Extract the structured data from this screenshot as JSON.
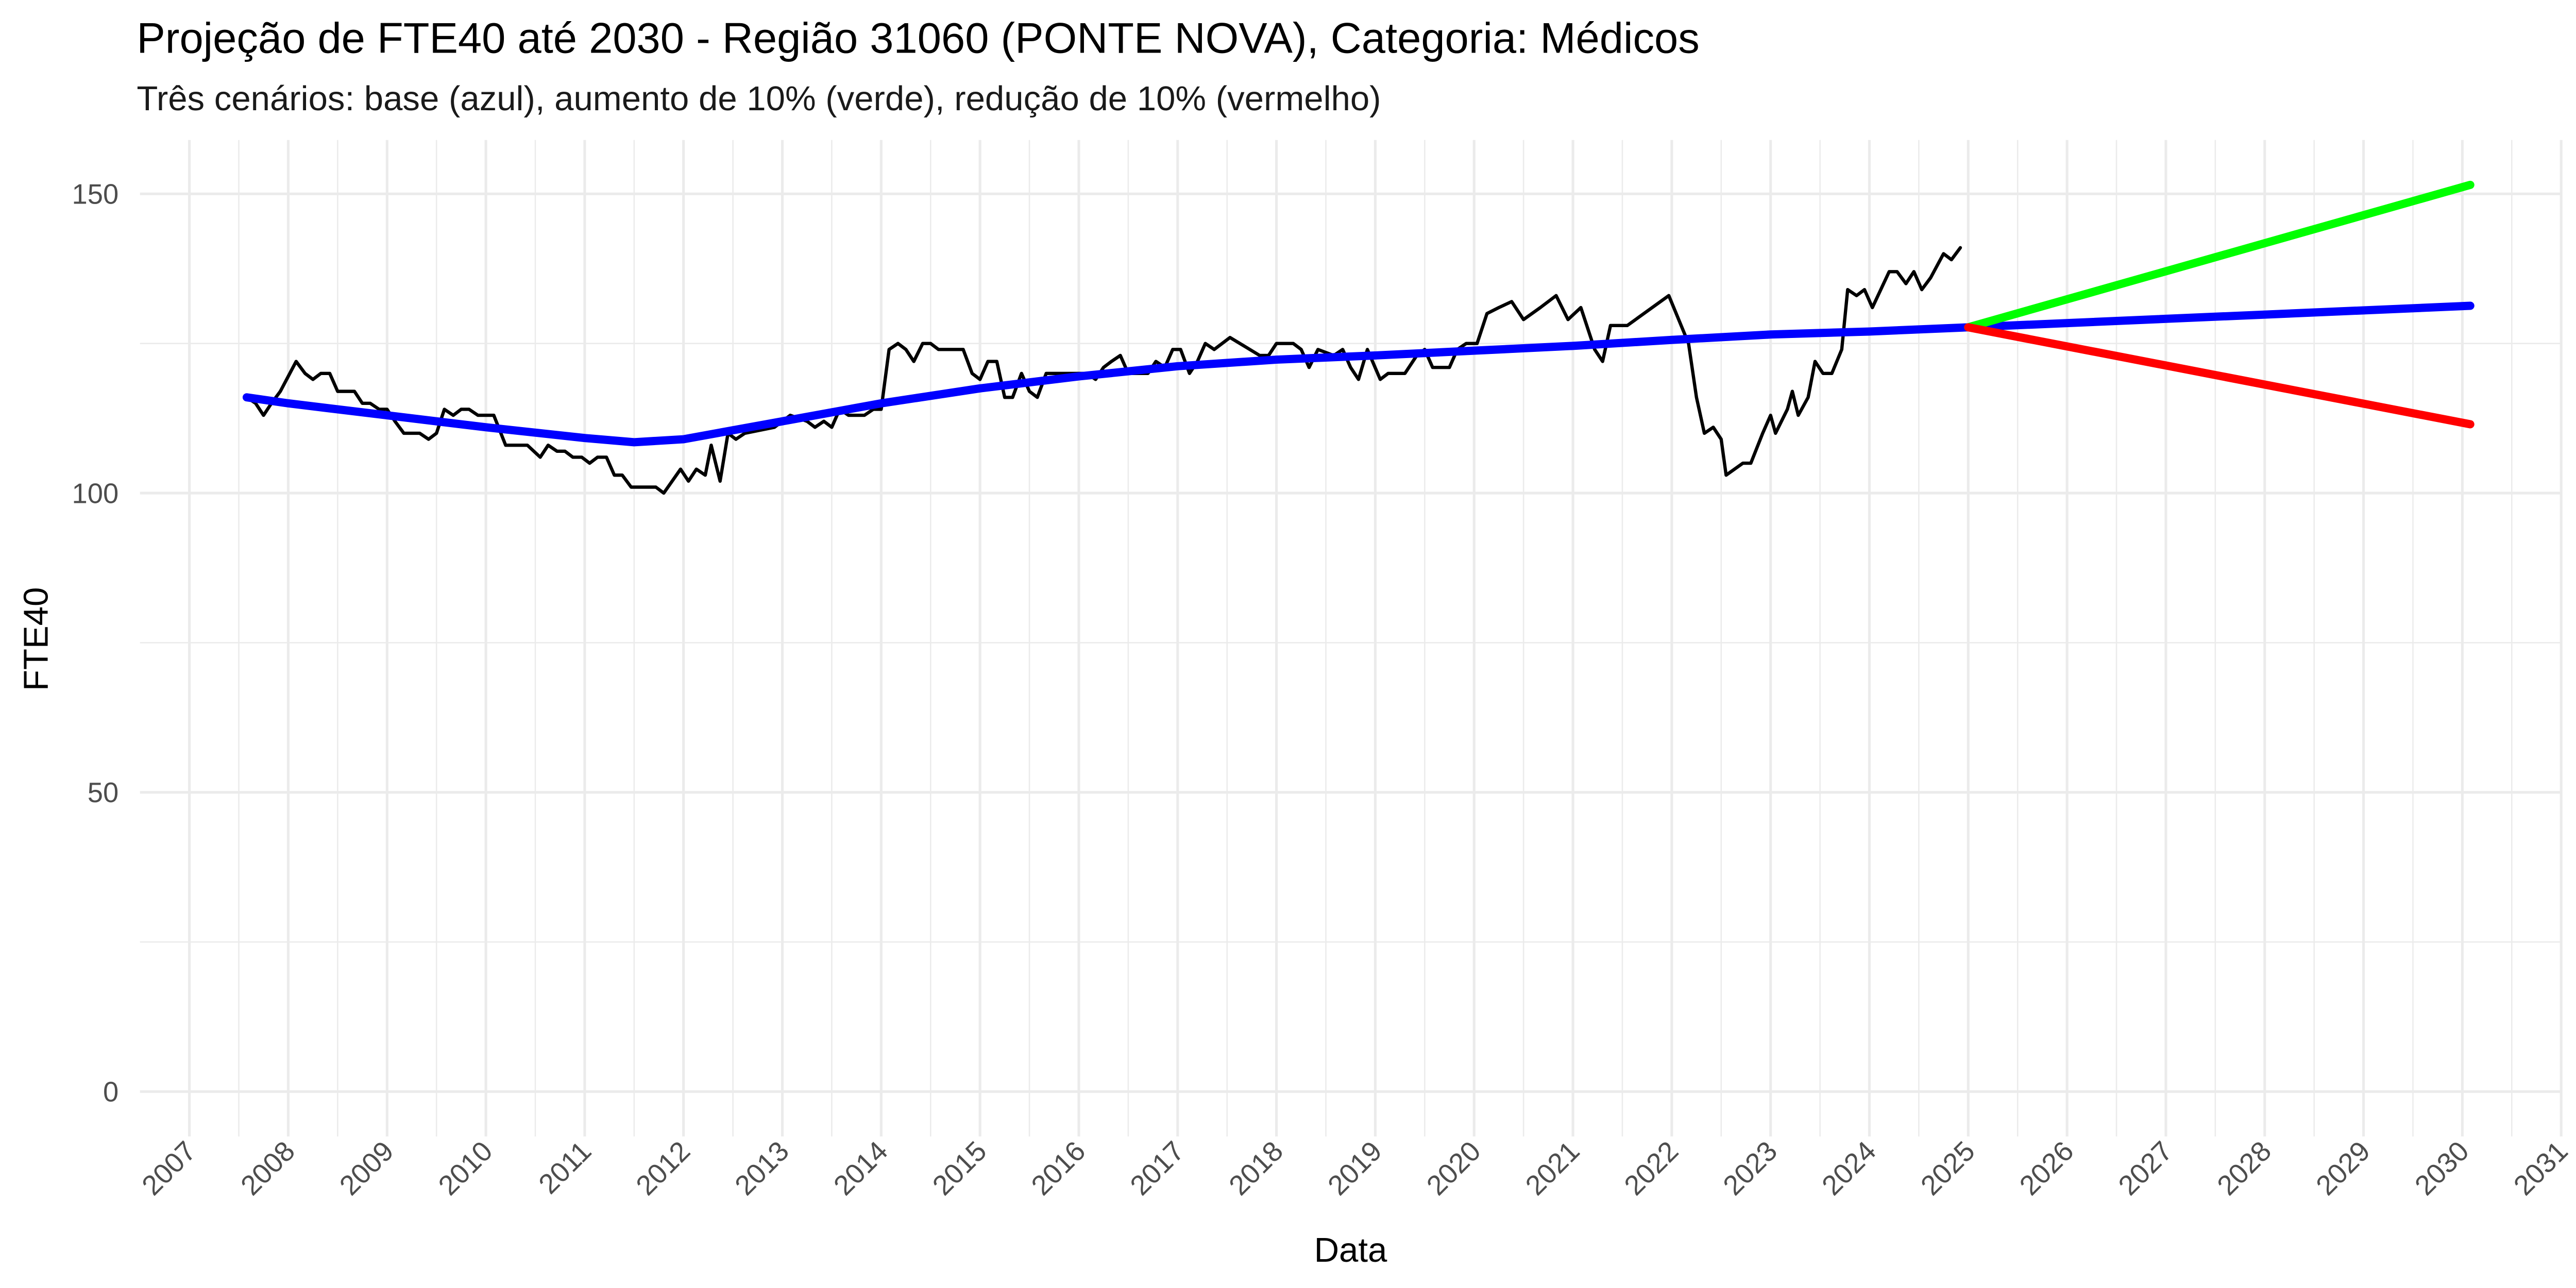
{
  "chart_data": {
    "type": "line",
    "title": "Projeção de FTE40 até 2030 - Região 31060 (PONTE NOVA), Categoria: Médicos",
    "subtitle": "Três cenários: base (azul), aumento de 10% (verde), redução de 10% (vermelho)",
    "x_label": "Data",
    "y_label": "FTE40",
    "xlim": [
      2006.5,
      2031.0
    ],
    "xticks": [
      2007,
      2008,
      2009,
      2010,
      2011,
      2012,
      2013,
      2014,
      2015,
      2016,
      2017,
      2018,
      2019,
      2020,
      2021,
      2022,
      2023,
      2024,
      2025,
      2026,
      2027,
      2028,
      2029,
      2030,
      2031
    ],
    "ylim": [
      -7.5,
      159
    ],
    "yticks": [
      0,
      50,
      100,
      150
    ],
    "grid": true,
    "series": [
      {
        "color": "#000000",
        "width": 2,
        "x": [
          2007.58,
          2007.67,
          2007.75,
          2007.83,
          2007.92,
          2008.08,
          2008.17,
          2008.25,
          2008.33,
          2008.42,
          2008.5,
          2008.67,
          2008.75,
          2008.83,
          2008.92,
          2009.0,
          2009.08,
          2009.17,
          2009.33,
          2009.42,
          2009.5,
          2009.58,
          2009.67,
          2009.75,
          2009.83,
          2009.92,
          2010.08,
          2010.2,
          2010.42,
          2010.55,
          2010.63,
          2010.72,
          2010.8,
          2010.88,
          2010.97,
          2011.05,
          2011.13,
          2011.22,
          2011.3,
          2011.38,
          2011.47,
          2011.72,
          2011.8,
          2011.97,
          2012.05,
          2012.13,
          2012.22,
          2012.28,
          2012.37,
          2012.45,
          2012.53,
          2012.62,
          2012.92,
          2013.08,
          2013.25,
          2013.33,
          2013.42,
          2013.5,
          2013.58,
          2013.67,
          2013.83,
          2013.92,
          2014.0,
          2014.08,
          2014.17,
          2014.25,
          2014.33,
          2014.42,
          2014.5,
          2014.58,
          2014.83,
          2014.92,
          2015.0,
          2015.08,
          2015.17,
          2015.25,
          2015.33,
          2015.42,
          2015.5,
          2015.58,
          2015.67,
          2015.83,
          2016.08,
          2016.17,
          2016.25,
          2016.33,
          2016.42,
          2016.5,
          2016.7,
          2016.78,
          2016.87,
          2016.95,
          2017.03,
          2017.12,
          2017.2,
          2017.28,
          2017.37,
          2017.45,
          2017.53,
          2017.83,
          2017.92,
          2018.0,
          2018.08,
          2018.17,
          2018.25,
          2018.33,
          2018.42,
          2018.58,
          2018.67,
          2018.75,
          2018.83,
          2018.92,
          2019.05,
          2019.13,
          2019.3,
          2019.42,
          2019.5,
          2019.58,
          2019.75,
          2019.83,
          2019.92,
          2020.03,
          2020.13,
          2020.25,
          2020.38,
          2020.5,
          2020.67,
          2020.83,
          2020.95,
          2021.08,
          2021.22,
          2021.3,
          2021.38,
          2021.55,
          2021.97,
          2022.17,
          2022.25,
          2022.33,
          2022.42,
          2022.5,
          2022.55,
          2022.72,
          2022.8,
          2022.92,
          2023.0,
          2023.05,
          2023.17,
          2023.22,
          2023.28,
          2023.38,
          2023.45,
          2023.53,
          2023.62,
          2023.72,
          2023.78,
          2023.87,
          2023.95,
          2024.03,
          2024.2,
          2024.28,
          2024.37,
          2024.45,
          2024.53,
          2024.62,
          2024.75,
          2024.83,
          2024.92
        ],
        "values": [
          116,
          115,
          113,
          115,
          117,
          122,
          120,
          119,
          120,
          120,
          117,
          117,
          115,
          115,
          114,
          114,
          112,
          110,
          110,
          109,
          110,
          114,
          113,
          114,
          114,
          113,
          113,
          108,
          108,
          106,
          108,
          107,
          107,
          106,
          106,
          105,
          106,
          106,
          103,
          103,
          101,
          101,
          100,
          104,
          102,
          104,
          103,
          108,
          102,
          110,
          109,
          110,
          111,
          113,
          112,
          111,
          112,
          111,
          114,
          113,
          113,
          114,
          114,
          124,
          125,
          124,
          122,
          125,
          125,
          124,
          124,
          120,
          119,
          122,
          122,
          116,
          116,
          120,
          117,
          116,
          120,
          120,
          120,
          119,
          121,
          122,
          123,
          120,
          120,
          122,
          121,
          124,
          124,
          120,
          122,
          125,
          124,
          125,
          126,
          123,
          123,
          125,
          125,
          125,
          124,
          121,
          124,
          123,
          124,
          121,
          119,
          124,
          119,
          120,
          120,
          123,
          124,
          121,
          121,
          124,
          125,
          125,
          130,
          131,
          132,
          129,
          131,
          133,
          129,
          131,
          124,
          122,
          128,
          128,
          133,
          125,
          116,
          110,
          111,
          109,
          103,
          105,
          105,
          110,
          113,
          110,
          114,
          117,
          113,
          116,
          122,
          120,
          120,
          124,
          134,
          133,
          134,
          131,
          137,
          137,
          135,
          137,
          134,
          136,
          140,
          139,
          141
        ]
      },
      {
        "color": "#0000ff",
        "width": 5,
        "x": [
          2007.58,
          2008,
          2009,
          2010,
          2011,
          2011.5,
          2012,
          2013,
          2014,
          2015,
          2016,
          2017,
          2018,
          2019,
          2020,
          2021,
          2022,
          2023,
          2024,
          2025,
          2030.08
        ],
        "values": [
          116,
          115,
          113,
          111,
          109.2,
          108.5,
          109,
          112,
          115,
          117.5,
          119.5,
          121.2,
          122.3,
          123,
          123.8,
          124.6,
          125.6,
          126.5,
          127,
          127.7,
          131.3
        ]
      },
      {
        "color": "#00ff00",
        "width": 5,
        "x": [
          2025,
          2030.08
        ],
        "values": [
          127.7,
          151.5
        ]
      },
      {
        "color": "#ff0000",
        "width": 5,
        "x": [
          2025,
          2030.08
        ],
        "values": [
          127.7,
          111.5
        ]
      }
    ]
  }
}
